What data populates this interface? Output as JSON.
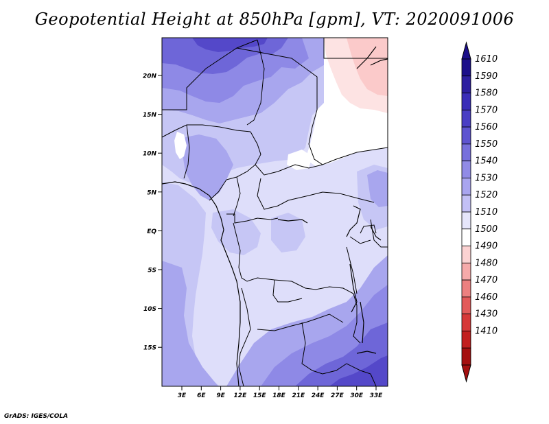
{
  "title": "Geopotential Height at 850hPa [gpm], VT: 2020091006",
  "credit": "GrADS: IGES/COLA",
  "map": {
    "lat_labels": [
      "20N",
      "15N",
      "10N",
      "5N",
      "EQ",
      "5S",
      "10S",
      "15S"
    ],
    "lon_labels": [
      "3E",
      "6E",
      "9E",
      "12E",
      "15E",
      "18E",
      "21E",
      "24E",
      "27E",
      "30E",
      "33E"
    ],
    "colors": {
      "base": "#dedefa",
      "c1530": "#c6c6f5",
      "c1540": "#a8a6ee",
      "c1550": "#8e89e6",
      "c1560": "#6e66d8",
      "c1570": "#5448c9",
      "white": "#ffffff",
      "pink1": "#fde3e3",
      "pink2": "#fbcaca"
    }
  },
  "colorbar": {
    "labels": [
      "1610",
      "1590",
      "1580",
      "1570",
      "1560",
      "1550",
      "1540",
      "1530",
      "1520",
      "1510",
      "1500",
      "1490",
      "1480",
      "1470",
      "1460",
      "1430",
      "1410"
    ],
    "colors": [
      "#1c0f8a",
      "#2d1fa0",
      "#3a2db8",
      "#4a3ec4",
      "#5e54d0",
      "#7770dc",
      "#918be6",
      "#a9a5ef",
      "#c3c0f5",
      "#e6e6fb",
      "#ffffff",
      "#fbd2d2",
      "#f5aaaa",
      "#ec8080",
      "#e35a5a",
      "#d63838",
      "#c21f1f",
      "#a51010"
    ],
    "top_arrow_color": "#1c0f8a",
    "bottom_arrow_color": "#a51010"
  }
}
